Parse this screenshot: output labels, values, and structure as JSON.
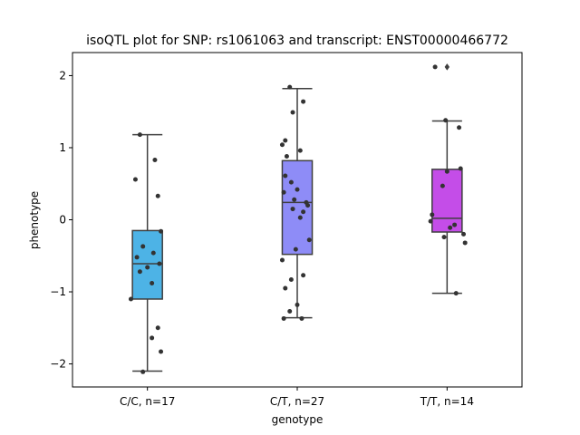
{
  "chart_data": {
    "type": "box",
    "title": "isoQTL plot for SNP: rs1061063 and transcript: ENST00000466772",
    "xlabel": "genotype",
    "ylabel": "phenotype",
    "ylim": [
      -2.32,
      2.32
    ],
    "yticks": [
      -2,
      -1,
      0,
      1,
      2
    ],
    "ytick_labels": [
      "−2",
      "−1",
      "0",
      "1",
      "2"
    ],
    "grid": false,
    "categories": [
      "C/C, n=17",
      "C/T, n=27",
      "T/T, n=14"
    ],
    "colors": [
      "#4db3e6",
      "#8e8cf7",
      "#c44de8"
    ],
    "boxes": [
      {
        "q1": -1.1,
        "median": -0.61,
        "q3": -0.15,
        "whisker_low": -2.1,
        "whisker_high": 1.18,
        "outliers": []
      },
      {
        "q1": -0.48,
        "median": 0.24,
        "q3": 0.82,
        "whisker_low": -1.36,
        "whisker_high": 1.82,
        "outliers": []
      },
      {
        "q1": -0.17,
        "median": 0.02,
        "q3": 0.7,
        "whisker_low": -1.02,
        "whisker_high": 1.37,
        "outliers": [
          2.12
        ]
      }
    ],
    "points": [
      [
        {
          "dx": -0.05,
          "y": 1.18
        },
        {
          "dx": -0.08,
          "y": 0.56
        },
        {
          "dx": 0.05,
          "y": 0.83
        },
        {
          "dx": 0.07,
          "y": 0.33
        },
        {
          "dx": 0.09,
          "y": -0.16
        },
        {
          "dx": -0.03,
          "y": -0.37
        },
        {
          "dx": -0.07,
          "y": -0.52
        },
        {
          "dx": 0.04,
          "y": -0.46
        },
        {
          "dx": 0.08,
          "y": -0.61
        },
        {
          "dx": -0.05,
          "y": -0.72
        },
        {
          "dx": 0.0,
          "y": -0.66
        },
        {
          "dx": 0.03,
          "y": -0.88
        },
        {
          "dx": -0.11,
          "y": -1.1
        },
        {
          "dx": 0.07,
          "y": -1.5
        },
        {
          "dx": 0.03,
          "y": -1.64
        },
        {
          "dx": 0.09,
          "y": -1.83
        },
        {
          "dx": -0.03,
          "y": -2.11
        }
      ],
      [
        {
          "dx": -0.05,
          "y": 1.84
        },
        {
          "dx": 0.04,
          "y": 1.64
        },
        {
          "dx": -0.03,
          "y": 1.49
        },
        {
          "dx": -0.08,
          "y": 1.1
        },
        {
          "dx": -0.1,
          "y": 1.04
        },
        {
          "dx": 0.02,
          "y": 0.96
        },
        {
          "dx": -0.07,
          "y": 0.88
        },
        {
          "dx": -0.08,
          "y": 0.61
        },
        {
          "dx": -0.04,
          "y": 0.52
        },
        {
          "dx": 0.0,
          "y": 0.42
        },
        {
          "dx": -0.09,
          "y": 0.38
        },
        {
          "dx": -0.02,
          "y": 0.28
        },
        {
          "dx": 0.06,
          "y": 0.24
        },
        {
          "dx": 0.07,
          "y": 0.2
        },
        {
          "dx": -0.03,
          "y": 0.15
        },
        {
          "dx": 0.04,
          "y": 0.11
        },
        {
          "dx": 0.02,
          "y": 0.03
        },
        {
          "dx": 0.08,
          "y": -0.28
        },
        {
          "dx": -0.01,
          "y": -0.41
        },
        {
          "dx": -0.1,
          "y": -0.56
        },
        {
          "dx": 0.04,
          "y": -0.77
        },
        {
          "dx": -0.04,
          "y": -0.83
        },
        {
          "dx": -0.08,
          "y": -0.95
        },
        {
          "dx": 0.0,
          "y": -1.18
        },
        {
          "dx": -0.05,
          "y": -1.27
        },
        {
          "dx": -0.09,
          "y": -1.37
        },
        {
          "dx": 0.03,
          "y": -1.37
        }
      ],
      [
        {
          "dx": -0.08,
          "y": 2.12
        },
        {
          "dx": -0.01,
          "y": 1.38
        },
        {
          "dx": 0.08,
          "y": 1.28
        },
        {
          "dx": 0.09,
          "y": 0.71
        },
        {
          "dx": 0.0,
          "y": 0.67
        },
        {
          "dx": -0.03,
          "y": 0.47
        },
        {
          "dx": -0.1,
          "y": 0.07
        },
        {
          "dx": -0.11,
          "y": -0.02
        },
        {
          "dx": 0.05,
          "y": -0.07
        },
        {
          "dx": 0.02,
          "y": -0.11
        },
        {
          "dx": 0.11,
          "y": -0.2
        },
        {
          "dx": -0.02,
          "y": -0.24
        },
        {
          "dx": 0.12,
          "y": -0.32
        },
        {
          "dx": 0.06,
          "y": -1.02
        }
      ]
    ]
  }
}
